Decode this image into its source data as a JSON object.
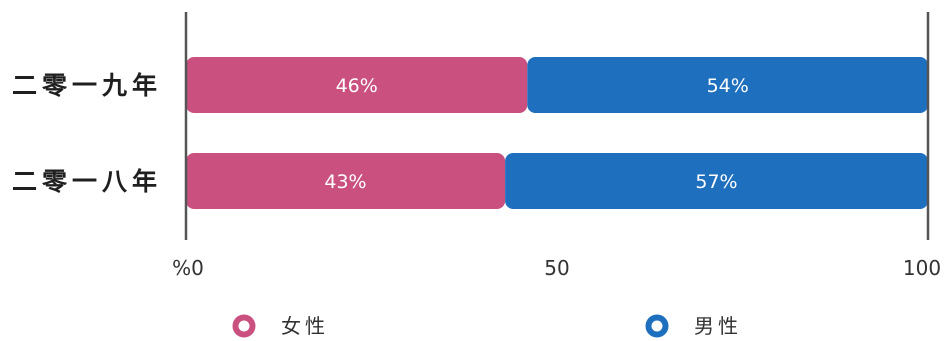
{
  "chart_data": {
    "type": "bar",
    "orientation": "horizontal",
    "stacked": true,
    "categories": [
      "二零一九年",
      "二零一八年"
    ],
    "series": [
      {
        "name": "女性",
        "values": [
          46,
          43
        ],
        "labels": [
          "46%",
          "43%"
        ],
        "color": "#c9507f"
      },
      {
        "name": "男性",
        "values": [
          54,
          57
        ],
        "labels": [
          "54%",
          "57%"
        ],
        "color": "#1f6fbf"
      }
    ],
    "xlim": [
      0,
      100
    ],
    "xticks": [
      0,
      50,
      100
    ],
    "xtick_labels": [
      "%0",
      "50",
      "100"
    ],
    "title": "",
    "xlabel": "",
    "ylabel": "",
    "grid": false,
    "legend_position": "bottom"
  }
}
